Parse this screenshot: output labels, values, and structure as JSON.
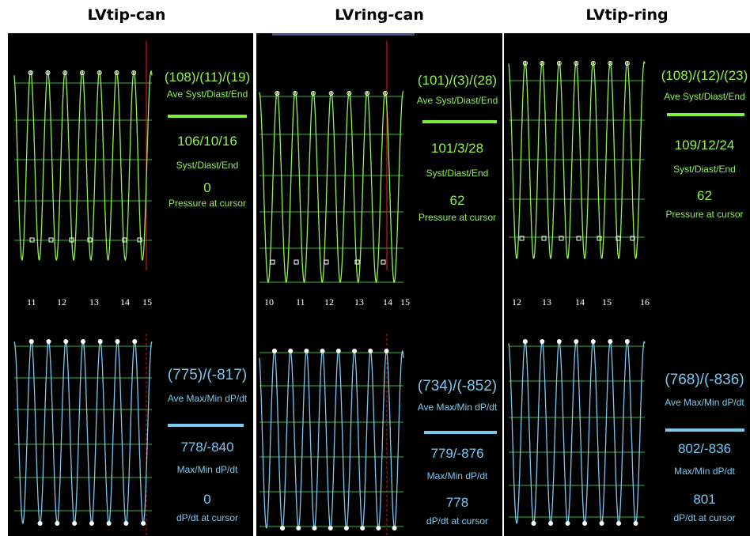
{
  "panels": [
    {
      "title": "LVtip-can",
      "pressure": {
        "ave": "(108)/(11)/(19)",
        "ave_label": "Ave Syst/Diast/End",
        "value": "106/10/16",
        "value_label": "Syst/Diast/End",
        "cursor": "0",
        "cursor_label": "Pressure at cursor"
      },
      "ticks": [
        "11",
        "12",
        "13",
        "14",
        "15"
      ],
      "dpdt": {
        "ave": "(775)/(-817)",
        "ave_label": "Ave Max/Min dP/dt",
        "value": "778/-840",
        "value_label": "Max/Min dP/dt",
        "cursor": "0",
        "cursor_label": "dP/dt at cursor"
      }
    },
    {
      "title": "LVring-can",
      "pressure": {
        "ave": "(101)/(3)/(28)",
        "ave_label": "Ave Syst/Diast/End",
        "value": "101/3/28",
        "value_label": "Syst/Diast/End",
        "cursor": "62",
        "cursor_label": "Pressure at cursor"
      },
      "ticks": [
        "10",
        "11",
        "12",
        "13",
        "14",
        "15"
      ],
      "dpdt": {
        "ave": "(734)/(-852)",
        "ave_label": "Ave Max/Min dP/dt",
        "value": "779/-876",
        "value_label": "Max/Min dP/dt",
        "cursor": "778",
        "cursor_label": "dP/dt at cursor"
      }
    },
    {
      "title": "LVtip-ring",
      "pressure": {
        "ave": "(108)/(12)/(23)",
        "ave_label": "Ave Syst/Diast/End",
        "value": "109/12/24",
        "value_label": "Syst/Diast/End",
        "cursor": "62",
        "cursor_label": "Pressure at cursor"
      },
      "ticks": [
        "12",
        "13",
        "14",
        "15",
        "16"
      ],
      "dpdt": {
        "ave": "(768)/(-836)",
        "ave_label": "Ave Max/Min dP/dt",
        "value": "802/-836",
        "value_label": "Max/Min dP/dt",
        "cursor": "801",
        "cursor_label": "dP/dt at cursor"
      }
    }
  ],
  "colors": {
    "pressure": "#8ff34b",
    "dpdt": "#7ac8f0",
    "cursor_line": "#d01818",
    "grid": "#2f8f2f",
    "background": "#000000"
  },
  "chart_data": [
    {
      "type": "line",
      "title": "LVtip-can",
      "series": [
        {
          "name": "Pressure",
          "cycles": 8,
          "values": {
            "syst": 106,
            "diast": 10,
            "end": 16
          }
        },
        {
          "name": "dP/dt",
          "cycles": 8,
          "values": {
            "max": 778,
            "min": -840
          }
        }
      ],
      "x_ticks": [
        11,
        12,
        13,
        14,
        15
      ],
      "cursor_at": 15
    },
    {
      "type": "line",
      "title": "LVring-can",
      "series": [
        {
          "name": "Pressure",
          "cycles": 8,
          "values": {
            "syst": 101,
            "diast": 3,
            "end": 28
          }
        },
        {
          "name": "dP/dt",
          "cycles": 9,
          "values": {
            "max": 779,
            "min": -876
          }
        }
      ],
      "x_ticks": [
        10,
        11,
        12,
        13,
        14,
        15
      ],
      "cursor_at": 14.6
    },
    {
      "type": "line",
      "title": "LVtip-ring",
      "series": [
        {
          "name": "Pressure",
          "cycles": 8,
          "values": {
            "syst": 109,
            "diast": 12,
            "end": 24
          }
        },
        {
          "name": "dP/dt",
          "cycles": 8,
          "values": {
            "max": 802,
            "min": -836
          }
        }
      ],
      "x_ticks": [
        12,
        13,
        14,
        15,
        16
      ],
      "cursor_at": null
    }
  ]
}
